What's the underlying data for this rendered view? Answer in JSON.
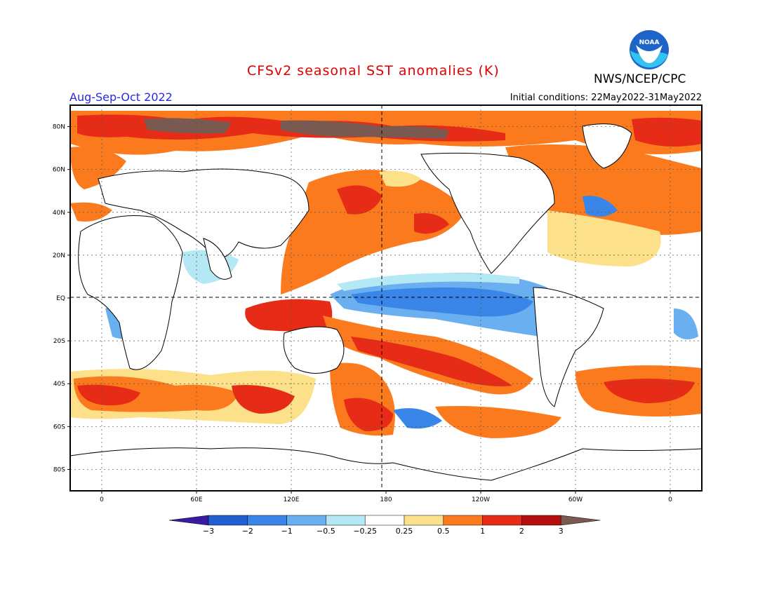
{
  "header": {
    "title": "CFSv2 seasonal SST anomalies (K)",
    "agency": "NWS/NCEP/CPC",
    "season": "Aug-Sep-Oct 2022",
    "initial_conditions": "Initial conditions: 22May2022-31May2022",
    "logo_text": "NOAA"
  },
  "axes": {
    "lat_labels": [
      "80N",
      "60N",
      "40N",
      "20N",
      "EQ",
      "20S",
      "40S",
      "60S",
      "80S"
    ],
    "lon_labels": [
      "0",
      "60E",
      "120E",
      "180",
      "120W",
      "60W",
      "0"
    ]
  },
  "colorbar": {
    "labels": [
      "−3",
      "−2",
      "−1",
      "−0.5",
      "−0.25",
      "0.25",
      "0.5",
      "1",
      "2",
      "3"
    ],
    "colors": [
      "#3a1aa0",
      "#1f5fd0",
      "#3a86e8",
      "#6aaff0",
      "#b4e8f4",
      "#ffffff",
      "#fde08a",
      "#fb7a1e",
      "#e62c17",
      "#b40e0e",
      "#7a5a50"
    ]
  },
  "chart_data": {
    "type": "heatmap",
    "variable": "SST anomaly",
    "units": "K",
    "levels": [
      -3,
      -2,
      -1,
      -0.5,
      -0.25,
      0.25,
      0.5,
      1,
      2,
      3
    ],
    "lat_range": [
      -90,
      90
    ],
    "lon_range": [
      -20,
      380
    ]
  }
}
